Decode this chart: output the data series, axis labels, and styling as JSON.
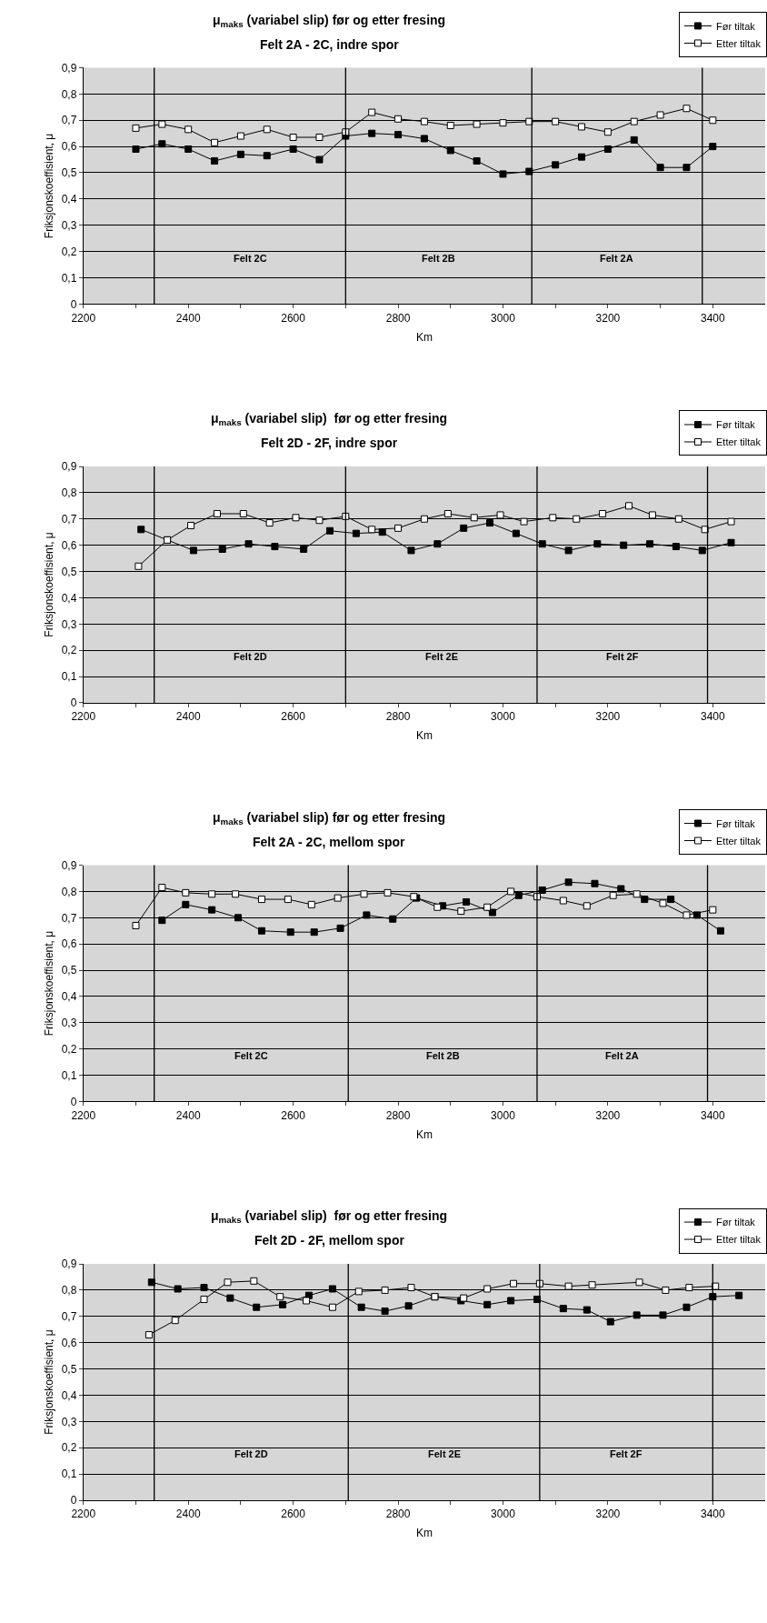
{
  "chart_data": [
    {
      "type": "line",
      "title": "μ$_{maks}$ (variabel slip) før og etter fresing",
      "subtitle": "Felt 2A - 2C, indre spor",
      "xlabel": "Km",
      "ylabel": "Friksjonskoeffisient, μ",
      "x": [
        2300,
        2350,
        2400,
        2450,
        2500,
        2550,
        2600,
        2650,
        2700,
        2750,
        2800,
        2850,
        2900,
        2950,
        3000,
        3050,
        3100,
        3150,
        3200,
        3250,
        3300,
        3350,
        3400
      ],
      "series": [
        {
          "name": "Før tiltak",
          "color": "#000000",
          "marker": "square",
          "values": [
            0.59,
            0.61,
            0.59,
            0.545,
            0.57,
            0.565,
            0.59,
            0.55,
            0.64,
            0.65,
            0.645,
            0.63,
            0.585,
            0.545,
            0.495,
            0.505,
            0.53,
            0.56,
            0.59,
            0.625,
            0.52,
            0.52,
            0.6
          ]
        },
        {
          "name": "Etter tiltak",
          "color": "#000000",
          "marker": "square",
          "values": [
            0.67,
            0.685,
            0.665,
            0.615,
            0.64,
            0.665,
            0.635,
            0.635,
            0.655,
            0.73,
            0.705,
            0.695,
            0.68,
            0.685,
            0.69,
            0.695,
            0.695,
            0.675,
            0.655,
            0.695,
            0.72,
            0.745,
            0.7
          ]
        }
      ],
      "ref_lines": [
        {
          "axis": "x",
          "value": 2335
        },
        {
          "axis": "x",
          "value": 2700
        },
        {
          "axis": "x",
          "value": 3055
        },
        {
          "axis": "x",
          "value": 3380
        }
      ],
      "annotations": [
        "Felt 2C",
        "Felt 2B",
        "Felt 2A"
      ],
      "xlim": [
        2200,
        3500
      ],
      "xticks": [
        2200,
        {
          "value": 2300,
          "label": null
        },
        2400,
        {
          "value": 2500,
          "label": null
        },
        2600,
        {
          "value": 2700,
          "label": null
        },
        2800,
        {
          "value": 2900,
          "label": null
        },
        3000,
        {
          "value": 3100,
          "label": null
        },
        3200,
        {
          "value": 3300,
          "label": null
        },
        3400
      ],
      "ylim": [
        0,
        0.9
      ],
      "yticks": [
        0,
        {
          "value": 0.1,
          "label": "0,1"
        },
        {
          "value": 0.2,
          "label": "0,2"
        },
        {
          "value": 0.3,
          "label": "0,3"
        },
        {
          "value": 0.4,
          "label": "0,4"
        },
        {
          "value": 0.5,
          "label": "0,5"
        },
        {
          "value": 0.6,
          "label": "0,6"
        },
        {
          "value": 0.7,
          "label": "0,7"
        },
        {
          "value": 0.8,
          "label": "0,8"
        },
        {
          "value": 0.9,
          "label": "0,9"
        }
      ],
      "grid": "y",
      "legend": "top right",
      "line_style": "solid"
    },
    {
      "type": "line",
      "title": "μ$_{maks}$ (variabel slip)  før og etter fresing",
      "subtitle": "Felt 2D - 2F, indre spor",
      "xlabel": "Km",
      "ylabel": "Friksjonskoeffisient, μ",
      "series": [
        {
          "name": "Før tiltak",
          "color": "#000000",
          "marker": "square",
          "x": [
            2310,
            2360,
            2410,
            2465,
            2515,
            2565,
            2620,
            2670,
            2720,
            2770,
            2825,
            2875,
            2925,
            2975,
            3025,
            3075,
            3125,
            3180,
            3230,
            3280,
            3330,
            3380,
            3435
          ],
          "values": [
            0.66,
            0.62,
            0.58,
            0.585,
            0.605,
            0.595,
            0.585,
            0.655,
            0.645,
            0.65,
            0.58,
            0.605,
            0.665,
            0.685,
            0.645,
            0.605,
            0.58,
            0.605,
            0.6,
            0.605,
            0.595,
            0.58,
            0.61
          ]
        },
        {
          "name": "Etter tiltak",
          "color": "#000000",
          "marker": "square",
          "x": [
            2305,
            2360,
            2405,
            2455,
            2505,
            2555,
            2605,
            2650,
            2700,
            2750,
            2800,
            2850,
            2895,
            2945,
            2995,
            3040,
            3095,
            3140,
            3190,
            3240,
            3285,
            3335,
            3385,
            3435
          ],
          "values": [
            0.52,
            0.62,
            0.675,
            0.72,
            0.72,
            0.685,
            0.705,
            0.695,
            0.71,
            0.66,
            0.665,
            0.7,
            0.72,
            0.705,
            0.715,
            0.69,
            0.705,
            0.7,
            0.72,
            0.75,
            0.715,
            0.7,
            0.66,
            0.69
          ]
        }
      ],
      "ref_lines": [
        {
          "axis": "x",
          "value": 2335
        },
        {
          "axis": "x",
          "value": 2700
        },
        {
          "axis": "x",
          "value": 3065
        },
        {
          "axis": "x",
          "value": 3390
        }
      ],
      "annotations": [
        "Felt 2D",
        "Felt 2E",
        "Felt 2F"
      ],
      "xlim": [
        2200,
        3500
      ],
      "xticks": [
        2200,
        {
          "value": 2300,
          "label": null
        },
        2400,
        {
          "value": 2500,
          "label": null
        },
        2600,
        {
          "value": 2700,
          "label": null
        },
        2800,
        {
          "value": 2900,
          "label": null
        },
        3000,
        {
          "value": 3100,
          "label": null
        },
        3200,
        {
          "value": 3300,
          "label": null
        },
        3400
      ],
      "ylim": [
        0,
        0.9
      ],
      "yticks": [
        0,
        {
          "value": 0.1,
          "label": "0,1"
        },
        {
          "value": 0.2,
          "label": "0,2"
        },
        {
          "value": 0.3,
          "label": "0,3"
        },
        {
          "value": 0.4,
          "label": "0,4"
        },
        {
          "value": 0.5,
          "label": "0,5"
        },
        {
          "value": 0.6,
          "label": "0,6"
        },
        {
          "value": 0.7,
          "label": "0,7"
        },
        {
          "value": 0.8,
          "label": "0,8"
        },
        {
          "value": 0.9,
          "label": "0,9"
        }
      ],
      "grid": "y",
      "legend": "top right",
      "line_style": "solid"
    },
    {
      "type": "line",
      "title": "μ$_{maks}$ (variabel slip) før og etter fresing",
      "subtitle": "Felt 2A - 2C, mellom spor",
      "xlabel": "Km",
      "ylabel": "Friksjonskoeffisient, μ",
      "series": [
        {
          "name": "Før tiltak",
          "color": "#000000",
          "marker": "square",
          "x": [
            2350,
            2395,
            2445,
            2495,
            2540,
            2595,
            2640,
            2690,
            2740,
            2790,
            2835,
            2885,
            2930,
            2980,
            3030,
            3075,
            3125,
            3175,
            3225,
            3270,
            3320,
            3370,
            3415
          ],
          "values": [
            0.69,
            0.75,
            0.73,
            0.7,
            0.65,
            0.645,
            0.645,
            0.66,
            0.71,
            0.695,
            0.775,
            0.745,
            0.76,
            0.72,
            0.785,
            0.805,
            0.835,
            0.83,
            0.81,
            0.77,
            0.77,
            0.71,
            0.65
          ]
        },
        {
          "name": "Etter tiltak",
          "color": "#000000",
          "marker": "square",
          "x": [
            2300,
            2350,
            2395,
            2445,
            2490,
            2540,
            2590,
            2635,
            2685,
            2735,
            2780,
            2830,
            2875,
            2920,
            2970,
            3015,
            3065,
            3115,
            3160,
            3210,
            3255,
            3305,
            3350,
            3400
          ],
          "values": [
            0.67,
            0.815,
            0.795,
            0.79,
            0.79,
            0.77,
            0.77,
            0.75,
            0.775,
            0.79,
            0.795,
            0.78,
            0.74,
            0.725,
            0.74,
            0.8,
            0.78,
            0.765,
            0.745,
            0.785,
            0.79,
            0.755,
            0.71,
            0.73
          ]
        }
      ],
      "ref_lines": [
        {
          "axis": "x",
          "value": 2335
        },
        {
          "axis": "x",
          "value": 2705
        },
        {
          "axis": "x",
          "value": 3065
        },
        {
          "axis": "x",
          "value": 3390
        }
      ],
      "annotations": [
        "Felt 2C",
        "Felt 2B",
        "Felt 2A"
      ],
      "xlim": [
        2200,
        3500
      ],
      "xticks": [
        2200,
        {
          "value": 2300,
          "label": null
        },
        2400,
        {
          "value": 2500,
          "label": null
        },
        2600,
        {
          "value": 2700,
          "label": null
        },
        2800,
        {
          "value": 2900,
          "label": null
        },
        3000,
        {
          "value": 3100,
          "label": null
        },
        3200,
        {
          "value": 3300,
          "label": null
        },
        3400
      ],
      "ylim": [
        0,
        0.9
      ],
      "yticks": [
        0,
        {
          "value": 0.1,
          "label": "0,1"
        },
        {
          "value": 0.2,
          "label": "0,2"
        },
        {
          "value": 0.3,
          "label": "0,3"
        },
        {
          "value": 0.4,
          "label": "0,4"
        },
        {
          "value": 0.5,
          "label": "0,5"
        },
        {
          "value": 0.6,
          "label": "0,6"
        },
        {
          "value": 0.7,
          "label": "0,7"
        },
        {
          "value": 0.8,
          "label": "0,8"
        },
        {
          "value": 0.9,
          "label": "0,9"
        }
      ],
      "grid": "y",
      "legend": "top right",
      "line_style": "solid"
    },
    {
      "type": "line",
      "title": "μ$_{maks}$ (variabel slip)  før og etter fresing",
      "subtitle": "Felt 2D - 2F, mellom spor",
      "xlabel": "Km",
      "ylabel": "Friksjonskoeffisient, μ",
      "series": [
        {
          "name": "Før tiltak",
          "color": "#000000",
          "marker": "square",
          "x": [
            2330,
            2380,
            2430,
            2480,
            2530,
            2580,
            2630,
            2675,
            2730,
            2775,
            2820,
            2870,
            2920,
            2970,
            3015,
            3065,
            3115,
            3160,
            3205,
            3255,
            3305,
            3350,
            3400,
            3450
          ],
          "values": [
            0.83,
            0.805,
            0.81,
            0.77,
            0.735,
            0.745,
            0.78,
            0.805,
            0.735,
            0.72,
            0.74,
            0.775,
            0.76,
            0.745,
            0.76,
            0.765,
            0.73,
            0.725,
            0.68,
            0.705,
            0.705,
            0.735,
            0.775,
            0.78
          ]
        },
        {
          "name": "Etter tiltak",
          "color": "#000000",
          "marker": "square",
          "x": [
            2325,
            2375,
            2430,
            2475,
            2525,
            2575,
            2625,
            2675,
            2725,
            2775,
            2825,
            2870,
            2925,
            2970,
            3020,
            3070,
            3125,
            3170,
            3260,
            3310,
            3355,
            3405
          ],
          "values": [
            0.63,
            0.685,
            0.765,
            0.83,
            0.835,
            0.775,
            0.76,
            0.735,
            0.795,
            0.8,
            0.81,
            0.775,
            0.77,
            0.805,
            0.825,
            0.825,
            0.815,
            0.82,
            0.83,
            0.8,
            0.81,
            0.815
          ]
        }
      ],
      "ref_lines": [
        {
          "axis": "x",
          "value": 2335
        },
        {
          "axis": "x",
          "value": 2705
        },
        {
          "axis": "x",
          "value": 3070
        },
        {
          "axis": "x",
          "value": 3400
        }
      ],
      "annotations": [
        "Felt 2D",
        "Felt 2E",
        "Felt 2F"
      ],
      "xlim": [
        2200,
        3500
      ],
      "xticks": [
        2200,
        {
          "value": 2300,
          "label": null
        },
        2400,
        {
          "value": 2500,
          "label": null
        },
        2600,
        {
          "value": 2700,
          "label": null
        },
        2800,
        {
          "value": 2900,
          "label": null
        },
        3000,
        {
          "value": 3100,
          "label": null
        },
        3200,
        {
          "value": 3300,
          "label": null
        },
        3400
      ],
      "ylim": [
        0,
        0.9
      ],
      "yticks": [
        0,
        {
          "value": 0.1,
          "label": "0,1"
        },
        {
          "value": 0.2,
          "label": "0,2"
        },
        {
          "value": 0.3,
          "label": "0,3"
        },
        {
          "value": 0.4,
          "label": "0,4"
        },
        {
          "value": 0.5,
          "label": "0,5"
        },
        {
          "value": 0.6,
          "label": "0,6"
        },
        {
          "value": 0.7,
          "label": "0,7"
        },
        {
          "value": 0.8,
          "label": "0,8"
        },
        {
          "value": 0.9,
          "label": "0,9"
        }
      ],
      "grid": "y",
      "legend": "top right",
      "line_style": "solid"
    }
  ]
}
